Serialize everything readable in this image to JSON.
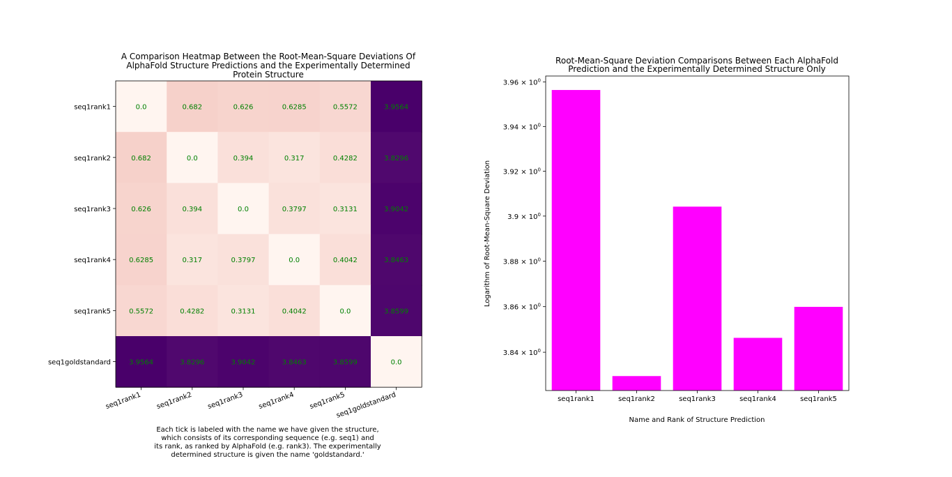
{
  "colors": {
    "cell_text": "#008000",
    "bar_fill": "#ff00ff",
    "heatmap_low": "#fff5f0",
    "heatmap_mid": "#f6cfc8",
    "heatmap_high": "#49006a"
  },
  "chart_data": [
    {
      "type": "heatmap",
      "title_lines": [
        "A Comparison Heatmap Between the Root-Mean-Square Deviations Of",
        "AlphaFold Structure Predictions and the Experimentally Determined",
        "Protein Structure"
      ],
      "row_labels": [
        "seq1rank1",
        "seq1rank2",
        "seq1rank3",
        "seq1rank4",
        "seq1rank5",
        "seq1goldstandard"
      ],
      "col_labels": [
        "seq1rank1",
        "seq1rank2",
        "seq1rank3",
        "seq1rank4",
        "seq1rank5",
        "seq1goldstandard"
      ],
      "values": [
        [
          0.0,
          0.682,
          0.626,
          0.6285,
          0.5572,
          3.9564
        ],
        [
          0.682,
          0.0,
          0.394,
          0.317,
          0.4282,
          3.8296
        ],
        [
          0.626,
          0.394,
          0.0,
          0.3797,
          0.3131,
          3.9042
        ],
        [
          0.6285,
          0.317,
          0.3797,
          0.0,
          0.4042,
          3.8463
        ],
        [
          0.5572,
          0.4282,
          0.3131,
          0.4042,
          0.0,
          3.8599
        ],
        [
          3.9564,
          3.8296,
          3.9042,
          3.8463,
          3.8599,
          0.0
        ]
      ],
      "cell_labels": [
        [
          "0.0",
          "0.682",
          "0.626",
          "0.6285",
          "0.5572",
          "3.9564"
        ],
        [
          "0.682",
          "0.0",
          "0.394",
          "0.317",
          "0.4282",
          "3.8296"
        ],
        [
          "0.626",
          "0.394",
          "0.0",
          "0.3797",
          "0.3131",
          "3.9042"
        ],
        [
          "0.6285",
          "0.317",
          "0.3797",
          "0.0",
          "0.4042",
          "3.8463"
        ],
        [
          "0.5572",
          "0.4282",
          "0.3131",
          "0.4042",
          "0.0",
          "3.8599"
        ],
        [
          "3.9564",
          "3.8296",
          "3.9042",
          "3.8463",
          "3.8599",
          "0.0"
        ]
      ],
      "caption_lines": [
        "Each tick is labeled with the name we have given the structure,",
        "which consists of its corresponding sequence (e.g. seq1) and",
        "its rank, as ranked by AlphaFold (e.g. rank3). The experimentally",
        "determined structure is given the name 'goldstandard.'"
      ]
    },
    {
      "type": "bar",
      "title_lines": [
        "Root-Mean-Square Deviation Comparisons Between Each AlphaFold",
        "Prediction and the Experimentally Determined Structure Only"
      ],
      "categories": [
        "seq1rank1",
        "seq1rank2",
        "seq1rank3",
        "seq1rank4",
        "seq1rank5"
      ],
      "values": [
        3.9564,
        3.8296,
        3.9042,
        3.8463,
        3.8599
      ],
      "xlabel": "Name and Rank of Structure Prediction",
      "ylabel": "Logarithm of Root-Mean-Square Deviation",
      "yscale": "log",
      "ylim": [
        3.8233,
        3.9627
      ],
      "yticks": [
        3.84,
        3.86,
        3.88,
        3.9,
        3.92,
        3.94,
        3.96
      ],
      "ytick_labels": [
        {
          "mantissa": "3.84",
          "exp": "0"
        },
        {
          "mantissa": "3.86",
          "exp": "0"
        },
        {
          "mantissa": "3.88",
          "exp": "0"
        },
        {
          "mantissa": "3.9",
          "exp": "0"
        },
        {
          "mantissa": "3.92",
          "exp": "0"
        },
        {
          "mantissa": "3.94",
          "exp": "0"
        },
        {
          "mantissa": "3.96",
          "exp": "0"
        }
      ],
      "grid": false
    }
  ]
}
